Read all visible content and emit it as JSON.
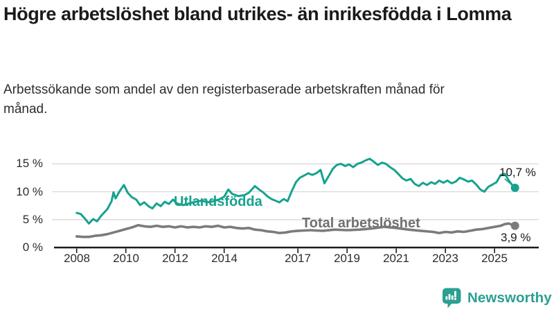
{
  "header": {
    "title": "Högre arbetslöshet bland utrikes- än inrikesfödda i Lomma",
    "subtitle": "Arbetssökande som andel av den registerbaserade arbetskraften månad för månad."
  },
  "colors": {
    "foreign_line": "#16A28E",
    "total_line": "#7B7B7B",
    "total_label": "#707070",
    "grid": "#DADADA",
    "axis": "#1C1C1C",
    "tick_text": "#2B2B2B",
    "end_label_text": "#1A1A1A",
    "logo_teal": "#2AA093"
  },
  "logo": {
    "text": "Newsworthy"
  },
  "chart_data": {
    "type": "line",
    "title": "Högre arbetslöshet bland utrikes- än inrikesfödda i Lomma",
    "subtitle": "Arbetssökande som andel av den registerbaserade arbetskraften månad för månad.",
    "unit": "%",
    "grid": "horizontal",
    "legend_position": "inline-labels",
    "x_axis": {
      "ticks": [
        2008,
        2010,
        2012,
        2014,
        2017,
        2019,
        2021,
        2023,
        2025
      ],
      "labels": [
        "2008",
        "2010",
        "2012",
        "2014",
        "2017",
        "2019",
        "2021",
        "2023",
        "2025"
      ],
      "range": [
        2008,
        2026
      ]
    },
    "y_axis": {
      "ticks": [
        0,
        5,
        10,
        15
      ],
      "labels": [
        "0 %",
        "5 %",
        "10 %",
        "15 %"
      ],
      "range": [
        0,
        16.5
      ]
    },
    "series": [
      {
        "name": "Utlandsfödda",
        "color": "#16A28E",
        "end_value": 10.7,
        "end_label": "10,7 %",
        "points": [
          [
            2008.0,
            6.2
          ],
          [
            2008.17,
            6.0
          ],
          [
            2008.33,
            5.2
          ],
          [
            2008.5,
            4.3
          ],
          [
            2008.67,
            5.1
          ],
          [
            2008.83,
            4.7
          ],
          [
            2009.0,
            5.7
          ],
          [
            2009.25,
            6.9
          ],
          [
            2009.42,
            8.3
          ],
          [
            2009.5,
            9.9
          ],
          [
            2009.58,
            8.8
          ],
          [
            2009.75,
            10.1
          ],
          [
            2009.92,
            11.2
          ],
          [
            2010.08,
            9.8
          ],
          [
            2010.25,
            9.0
          ],
          [
            2010.42,
            8.6
          ],
          [
            2010.58,
            7.6
          ],
          [
            2010.75,
            8.1
          ],
          [
            2010.92,
            7.4
          ],
          [
            2011.08,
            7.0
          ],
          [
            2011.25,
            7.9
          ],
          [
            2011.42,
            7.4
          ],
          [
            2011.58,
            8.2
          ],
          [
            2011.75,
            7.8
          ],
          [
            2011.92,
            8.6
          ],
          [
            2012.08,
            7.9
          ],
          [
            2012.33,
            7.6
          ],
          [
            2012.58,
            7.9
          ],
          [
            2012.83,
            8.2
          ],
          [
            2013.08,
            8.4
          ],
          [
            2013.33,
            8.1
          ],
          [
            2013.58,
            8.3
          ],
          [
            2013.83,
            8.7
          ],
          [
            2014.0,
            9.1
          ],
          [
            2014.17,
            10.4
          ],
          [
            2014.33,
            9.6
          ],
          [
            2014.58,
            9.2
          ],
          [
            2014.83,
            9.4
          ],
          [
            2015.0,
            9.8
          ],
          [
            2015.25,
            11.0
          ],
          [
            2015.42,
            10.4
          ],
          [
            2015.58,
            9.9
          ],
          [
            2015.75,
            9.2
          ],
          [
            2015.92,
            8.7
          ],
          [
            2016.08,
            8.4
          ],
          [
            2016.25,
            8.1
          ],
          [
            2016.42,
            8.7
          ],
          [
            2016.58,
            8.3
          ],
          [
            2016.75,
            10.1
          ],
          [
            2016.92,
            11.7
          ],
          [
            2017.08,
            12.5
          ],
          [
            2017.25,
            12.9
          ],
          [
            2017.42,
            13.3
          ],
          [
            2017.58,
            13.0
          ],
          [
            2017.75,
            13.3
          ],
          [
            2017.92,
            13.9
          ],
          [
            2018.08,
            11.5
          ],
          [
            2018.25,
            12.8
          ],
          [
            2018.42,
            14.1
          ],
          [
            2018.58,
            14.8
          ],
          [
            2018.75,
            15.0
          ],
          [
            2018.92,
            14.6
          ],
          [
            2019.08,
            14.9
          ],
          [
            2019.25,
            14.4
          ],
          [
            2019.42,
            15.0
          ],
          [
            2019.58,
            15.2
          ],
          [
            2019.75,
            15.6
          ],
          [
            2019.92,
            15.9
          ],
          [
            2020.08,
            15.4
          ],
          [
            2020.25,
            14.8
          ],
          [
            2020.42,
            15.2
          ],
          [
            2020.58,
            15.0
          ],
          [
            2020.75,
            14.4
          ],
          [
            2020.92,
            13.9
          ],
          [
            2021.08,
            13.2
          ],
          [
            2021.25,
            12.4
          ],
          [
            2021.42,
            12.0
          ],
          [
            2021.58,
            12.3
          ],
          [
            2021.75,
            11.4
          ],
          [
            2021.92,
            11.0
          ],
          [
            2022.08,
            11.6
          ],
          [
            2022.25,
            11.2
          ],
          [
            2022.42,
            11.7
          ],
          [
            2022.58,
            11.4
          ],
          [
            2022.75,
            12.0
          ],
          [
            2022.92,
            11.6
          ],
          [
            2023.08,
            12.0
          ],
          [
            2023.25,
            11.5
          ],
          [
            2023.42,
            11.8
          ],
          [
            2023.58,
            12.5
          ],
          [
            2023.75,
            12.2
          ],
          [
            2023.92,
            11.8
          ],
          [
            2024.08,
            12.0
          ],
          [
            2024.25,
            11.3
          ],
          [
            2024.42,
            10.4
          ],
          [
            2024.58,
            10.0
          ],
          [
            2024.75,
            10.9
          ],
          [
            2024.92,
            11.3
          ],
          [
            2025.08,
            11.7
          ],
          [
            2025.25,
            13.0
          ],
          [
            2025.42,
            13.2
          ],
          [
            2025.58,
            12.0
          ],
          [
            2025.75,
            11.0
          ],
          [
            2025.83,
            10.7
          ]
        ]
      },
      {
        "name": "Total arbetslöshet",
        "color": "#7B7B7B",
        "end_value": 3.9,
        "end_label": "3,9 %",
        "points": [
          [
            2008.0,
            2.0
          ],
          [
            2008.25,
            1.9
          ],
          [
            2008.5,
            1.9
          ],
          [
            2008.75,
            2.1
          ],
          [
            2009.0,
            2.2
          ],
          [
            2009.25,
            2.4
          ],
          [
            2009.5,
            2.7
          ],
          [
            2009.75,
            3.0
          ],
          [
            2010.0,
            3.3
          ],
          [
            2010.25,
            3.6
          ],
          [
            2010.5,
            4.0
          ],
          [
            2010.75,
            3.8
          ],
          [
            2011.0,
            3.7
          ],
          [
            2011.25,
            3.9
          ],
          [
            2011.5,
            3.7
          ],
          [
            2011.75,
            3.8
          ],
          [
            2012.0,
            3.6
          ],
          [
            2012.25,
            3.8
          ],
          [
            2012.5,
            3.6
          ],
          [
            2012.75,
            3.7
          ],
          [
            2013.0,
            3.6
          ],
          [
            2013.25,
            3.8
          ],
          [
            2013.5,
            3.7
          ],
          [
            2013.75,
            3.9
          ],
          [
            2014.0,
            3.6
          ],
          [
            2014.25,
            3.7
          ],
          [
            2014.5,
            3.5
          ],
          [
            2014.75,
            3.4
          ],
          [
            2015.0,
            3.5
          ],
          [
            2015.25,
            3.2
          ],
          [
            2015.5,
            3.1
          ],
          [
            2015.75,
            2.9
          ],
          [
            2016.0,
            2.8
          ],
          [
            2016.25,
            2.6
          ],
          [
            2016.5,
            2.7
          ],
          [
            2016.75,
            2.9
          ],
          [
            2017.0,
            3.0
          ],
          [
            2017.5,
            3.1
          ],
          [
            2018.0,
            3.0
          ],
          [
            2018.5,
            3.2
          ],
          [
            2019.0,
            3.1
          ],
          [
            2019.5,
            3.2
          ],
          [
            2020.0,
            3.4
          ],
          [
            2020.5,
            3.7
          ],
          [
            2021.0,
            3.5
          ],
          [
            2021.5,
            3.2
          ],
          [
            2022.0,
            3.0
          ],
          [
            2022.5,
            2.8
          ],
          [
            2022.75,
            2.6
          ],
          [
            2023.0,
            2.8
          ],
          [
            2023.25,
            2.7
          ],
          [
            2023.5,
            2.9
          ],
          [
            2023.75,
            2.8
          ],
          [
            2024.0,
            3.0
          ],
          [
            2024.25,
            3.2
          ],
          [
            2024.5,
            3.3
          ],
          [
            2024.75,
            3.5
          ],
          [
            2025.0,
            3.7
          ],
          [
            2025.25,
            3.9
          ],
          [
            2025.42,
            4.2
          ],
          [
            2025.58,
            4.3
          ],
          [
            2025.83,
            3.9
          ]
        ]
      }
    ]
  }
}
